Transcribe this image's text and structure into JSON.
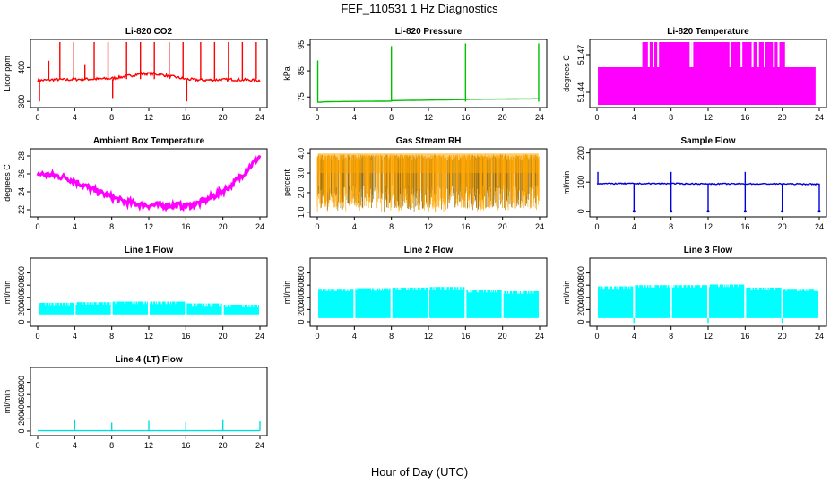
{
  "figure": {
    "title": "FEF_110531  1 Hz Diagnostics",
    "xlabel": "Hour of Day (UTC)"
  },
  "chart_data": [
    {
      "type": "line",
      "title": "Li-820 CO2",
      "ylabel": "Licor ppm",
      "color": "#ff0000",
      "xlim": [
        0,
        24
      ],
      "ylim": [
        290,
        475
      ],
      "xticks": [
        "0",
        "4",
        "8",
        "12",
        "16",
        "20",
        "24"
      ],
      "yticks": [
        "300",
        "400"
      ],
      "series": [
        {
          "x": [
            0,
            1,
            2,
            3,
            4,
            5,
            6,
            7,
            8,
            9,
            10,
            11,
            12,
            13,
            14,
            15,
            16,
            17,
            18,
            19,
            20,
            21,
            22,
            23,
            24
          ],
          "y": [
            362,
            363,
            365,
            364,
            365,
            366,
            366,
            367,
            368,
            372,
            376,
            381,
            382,
            380,
            376,
            371,
            366,
            364,
            363,
            364,
            364,
            365,
            364,
            363,
            362
          ]
        }
      ],
      "spikes": [
        {
          "x": 0.2,
          "y": 300
        },
        {
          "x": 1.2,
          "y": 420
        },
        {
          "x": 2.4,
          "y": 475
        },
        {
          "x": 3.9,
          "y": 475
        },
        {
          "x": 5.1,
          "y": 410
        },
        {
          "x": 6.1,
          "y": 475
        },
        {
          "x": 7.6,
          "y": 475
        },
        {
          "x": 8.1,
          "y": 310
        },
        {
          "x": 9.6,
          "y": 475
        },
        {
          "x": 11.1,
          "y": 475
        },
        {
          "x": 12.6,
          "y": 475
        },
        {
          "x": 14.2,
          "y": 475
        },
        {
          "x": 15.7,
          "y": 475
        },
        {
          "x": 16.1,
          "y": 300
        },
        {
          "x": 17.6,
          "y": 475
        },
        {
          "x": 19.1,
          "y": 475
        },
        {
          "x": 20.6,
          "y": 475
        },
        {
          "x": 22.1,
          "y": 475
        },
        {
          "x": 23.6,
          "y": 475
        }
      ]
    },
    {
      "type": "line",
      "title": "Li-820 Pressure",
      "ylabel": "kPa",
      "color": "#00c000",
      "xlim": [
        0,
        24
      ],
      "ylim": [
        72,
        96
      ],
      "xticks": [
        "0",
        "4",
        "8",
        "12",
        "16",
        "20",
        "24"
      ],
      "yticks": [
        "75",
        "85",
        "95"
      ],
      "series": [
        {
          "x": [
            0,
            0.3,
            1,
            4,
            7.9,
            8.1,
            12,
            15.9,
            16.1,
            20,
            23.9
          ],
          "y": [
            73.0,
            73.0,
            73.2,
            73.3,
            73.4,
            73.6,
            73.8,
            74.0,
            74.1,
            74.2,
            74.3
          ]
        }
      ],
      "spikes": [
        {
          "x": 0.05,
          "y": 89
        },
        {
          "x": 8.0,
          "y": 94.5
        },
        {
          "x": 16.0,
          "y": 95.5
        },
        {
          "x": 23.9,
          "y": 95.5
        }
      ]
    },
    {
      "type": "area",
      "title": "Li-820 Temperature",
      "ylabel": "degrees C",
      "color": "#ff00ff",
      "xlim": [
        0,
        24
      ],
      "ylim": [
        51.43,
        51.48
      ],
      "xticks": [
        "0",
        "4",
        "8",
        "12",
        "16",
        "20",
        "24"
      ],
      "yticks": [
        "51.44",
        "51.47"
      ],
      "series": [
        {
          "x": [
            0.1,
            4.9,
            4.9,
            5.9,
            6.1,
            10.5,
            10.7,
            14.5,
            14.5,
            20.2,
            20.3,
            23.7
          ],
          "y": [
            51.46,
            51.46,
            51.48,
            51.48,
            51.46,
            51.46,
            51.48,
            51.48,
            51.48,
            51.48,
            51.46,
            51.46
          ]
        }
      ],
      "base": 51.43
    },
    {
      "type": "line",
      "title": "Ambient Box Temperature",
      "ylabel": "degrees C",
      "color": "#ff00ff",
      "xlim": [
        0,
        24
      ],
      "ylim": [
        21.5,
        28.5
      ],
      "xticks": [
        "0",
        "4",
        "8",
        "12",
        "16",
        "20",
        "24"
      ],
      "yticks": [
        "22",
        "24",
        "26",
        "28"
      ],
      "series": [
        {
          "x": [
            0,
            1,
            2,
            3,
            4,
            5,
            6,
            7,
            8,
            9,
            10,
            11,
            12,
            13,
            14,
            15,
            16,
            17,
            18,
            19,
            20,
            21,
            22,
            23,
            24
          ],
          "y": [
            26.0,
            25.9,
            25.8,
            25.6,
            25.2,
            24.7,
            24.2,
            23.8,
            23.4,
            23.0,
            22.8,
            22.6,
            22.5,
            22.5,
            22.5,
            22.5,
            22.4,
            22.6,
            23.0,
            23.5,
            24.1,
            24.8,
            25.8,
            26.9,
            28.0
          ]
        }
      ]
    },
    {
      "type": "line",
      "title": "Gas Stream RH",
      "ylabel": "percent",
      "color": "#ffa500",
      "color2": "#8b6914",
      "xlim": [
        0,
        24
      ],
      "ylim": [
        0.9,
        4.1
      ],
      "xticks": [
        "0",
        "4",
        "8",
        "12",
        "16",
        "20",
        "24"
      ],
      "yticks": [
        "1.0",
        "2.0",
        "3.0",
        "4.0"
      ],
      "upper": 3.8,
      "lower": 1.2
    },
    {
      "type": "line",
      "title": "Sample Flow",
      "ylabel": "ml/min",
      "color": "#0000dd",
      "xlim": [
        0,
        24
      ],
      "ylim": [
        -10,
        205
      ],
      "xticks": [
        "0",
        "4",
        "8",
        "12",
        "16",
        "20",
        "24"
      ],
      "yticks": [
        "0",
        "100",
        "200"
      ],
      "series": [
        {
          "x": [
            0,
            4,
            8,
            12,
            16,
            20,
            24
          ],
          "y": [
            95,
            95,
            95,
            94,
            94,
            94,
            93
          ]
        }
      ],
      "spikes_up": [
        {
          "x": 0.1,
          "y": 135
        },
        {
          "x": 8.0,
          "y": 135
        },
        {
          "x": 16.0,
          "y": 135
        }
      ],
      "spikes_down": [
        {
          "x": 4.0,
          "y": 0
        },
        {
          "x": 8.0,
          "y": 0
        },
        {
          "x": 12.0,
          "y": 0
        },
        {
          "x": 16.0,
          "y": 0
        },
        {
          "x": 20.0,
          "y": 0
        },
        {
          "x": 24.0,
          "y": 0
        }
      ]
    },
    {
      "type": "area",
      "title": "Line 1 Flow",
      "ylabel": "ml/min",
      "color": "#00ffff",
      "xlim": [
        0,
        24
      ],
      "ylim": [
        -30,
        1000
      ],
      "xticks": [
        "0",
        "4",
        "8",
        "12",
        "16",
        "20",
        "24"
      ],
      "yticks": [
        "0",
        "200",
        "400",
        "600",
        "800"
      ],
      "segments": [
        {
          "x0": 0.1,
          "x1": 3.9,
          "lo": 120,
          "hi": 310
        },
        {
          "x0": 4.1,
          "x1": 7.9,
          "lo": 120,
          "hi": 320
        },
        {
          "x0": 8.1,
          "x1": 11.9,
          "lo": 120,
          "hi": 330
        },
        {
          "x0": 12.1,
          "x1": 15.9,
          "lo": 120,
          "hi": 330
        },
        {
          "x0": 16.1,
          "x1": 19.9,
          "lo": 120,
          "hi": 300
        },
        {
          "x0": 20.1,
          "x1": 23.9,
          "lo": 120,
          "hi": 280
        }
      ]
    },
    {
      "type": "area",
      "title": "Line 2 Flow",
      "ylabel": "ml/min",
      "color": "#00ffff",
      "xlim": [
        0,
        24
      ],
      "ylim": [
        -30,
        1000
      ],
      "xticks": [
        "0",
        "4",
        "8",
        "12",
        "16",
        "20",
        "24"
      ],
      "yticks": [
        "0",
        "200",
        "400",
        "600",
        "800"
      ],
      "segments": [
        {
          "x0": 0.1,
          "x1": 3.9,
          "lo": 60,
          "hi": 540
        },
        {
          "x0": 4.1,
          "x1": 7.9,
          "lo": 60,
          "hi": 550
        },
        {
          "x0": 8.1,
          "x1": 11.9,
          "lo": 60,
          "hi": 560
        },
        {
          "x0": 12.1,
          "x1": 15.9,
          "lo": 60,
          "hi": 570
        },
        {
          "x0": 16.1,
          "x1": 19.9,
          "lo": 60,
          "hi": 520
        },
        {
          "x0": 20.1,
          "x1": 23.9,
          "lo": 60,
          "hi": 500
        }
      ]
    },
    {
      "type": "area",
      "title": "Line 3 Flow",
      "ylabel": "ml/min",
      "color": "#00ffff",
      "xlim": [
        0,
        24
      ],
      "ylim": [
        -30,
        1000
      ],
      "xticks": [
        "0",
        "4",
        "8",
        "12",
        "16",
        "20",
        "24"
      ],
      "yticks": [
        "0",
        "200",
        "400",
        "600",
        "800"
      ],
      "segments": [
        {
          "x0": 0.1,
          "x1": 3.9,
          "lo": 60,
          "hi": 580
        },
        {
          "x0": 4.1,
          "x1": 7.9,
          "lo": 60,
          "hi": 600
        },
        {
          "x0": 8.1,
          "x1": 11.9,
          "lo": 60,
          "hi": 600
        },
        {
          "x0": 12.1,
          "x1": 15.9,
          "lo": 60,
          "hi": 610
        },
        {
          "x0": 16.1,
          "x1": 19.9,
          "lo": 60,
          "hi": 560
        },
        {
          "x0": 20.1,
          "x1": 23.9,
          "lo": 60,
          "hi": 540
        }
      ],
      "dips": [
        4.0,
        12.0,
        20.0
      ]
    },
    {
      "type": "line",
      "title": "Line 4 (LT) Flow",
      "ylabel": "ml/min",
      "color": "#00dddd",
      "xlim": [
        0,
        24
      ],
      "ylim": [
        -30,
        1000
      ],
      "xticks": [
        "0",
        "4",
        "8",
        "12",
        "16",
        "20",
        "24"
      ],
      "yticks": [
        "0",
        "200",
        "400",
        "600",
        "800"
      ],
      "series": [
        {
          "x": [
            0,
            24
          ],
          "y": [
            5,
            5
          ]
        }
      ],
      "spikes": [
        {
          "x": 4.0,
          "y": 180
        },
        {
          "x": 8.0,
          "y": 140
        },
        {
          "x": 12.0,
          "y": 170
        },
        {
          "x": 16.0,
          "y": 150
        },
        {
          "x": 20.0,
          "y": 180
        },
        {
          "x": 24.0,
          "y": 160
        }
      ]
    }
  ]
}
